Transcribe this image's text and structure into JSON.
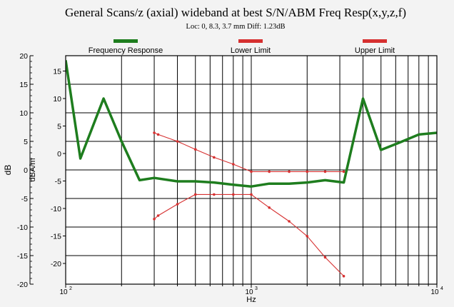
{
  "chart_data": {
    "type": "line",
    "title": "General Scans/z (axial) wideband at best S/N/ABM Freq Resp(x,y,z,f)",
    "subtitle": "Loc: 0, 8.3, 3.7 mm Diff: 1.23dB",
    "xlabel": "Hz",
    "ylabel_outer": "dB",
    "ylabel_inner": "dBA/m",
    "x_scale": "log",
    "xlim": [
      100,
      10000
    ],
    "x_ticks": [
      {
        "value": 100,
        "base": "10",
        "exp": "2"
      },
      {
        "value": 1000,
        "base": "10",
        "exp": "3"
      },
      {
        "value": 10000,
        "base": "10",
        "exp": "4"
      }
    ],
    "y_outer_ticks": [
      "20",
      "15",
      "10",
      "5",
      "0",
      "-5",
      "-10",
      "-15",
      "-20"
    ],
    "y_inner_ticks": [
      "15",
      "10",
      "5",
      "0",
      "-5",
      "-10",
      "-15",
      "-20"
    ],
    "grid": true,
    "legend_position": "top",
    "series": [
      {
        "name": "Frequency Response",
        "color": "#1e7d1e",
        "style": "thick",
        "points": [
          [
            100,
            19.2
          ],
          [
            120,
            2.0
          ],
          [
            160,
            12.5
          ],
          [
            200,
            5.0
          ],
          [
            250,
            -1.8
          ],
          [
            300,
            -1.4
          ],
          [
            400,
            -2.0
          ],
          [
            500,
            -2.0
          ],
          [
            630,
            -2.2
          ],
          [
            800,
            -2.6
          ],
          [
            1000,
            -2.9
          ],
          [
            1250,
            -2.4
          ],
          [
            1600,
            -2.4
          ],
          [
            2000,
            -2.2
          ],
          [
            2500,
            -1.8
          ],
          [
            3150,
            -2.2
          ],
          [
            4000,
            12.5
          ],
          [
            5000,
            3.5
          ],
          [
            6300,
            4.8
          ],
          [
            8000,
            6.2
          ],
          [
            10000,
            6.5
          ]
        ]
      },
      {
        "name": "Lower Limit",
        "color": "#d63030",
        "style": "thin-markers",
        "points": [
          [
            300,
            -8.6
          ],
          [
            315,
            -8.0
          ],
          [
            400,
            -6.0
          ],
          [
            500,
            -4.3
          ],
          [
            630,
            -4.3
          ],
          [
            800,
            -4.3
          ],
          [
            1000,
            -4.3
          ],
          [
            1250,
            -6.6
          ],
          [
            1600,
            -9.0
          ],
          [
            2000,
            -11.6
          ],
          [
            2500,
            -15.3
          ],
          [
            3150,
            -18.6
          ]
        ]
      },
      {
        "name": "Upper Limit",
        "color": "#d63030",
        "style": "thin-markers",
        "points": [
          [
            300,
            6.5
          ],
          [
            315,
            6.2
          ],
          [
            400,
            5.0
          ],
          [
            500,
            3.6
          ],
          [
            630,
            2.2
          ],
          [
            800,
            1.0
          ],
          [
            1000,
            -0.3
          ],
          [
            1250,
            -0.3
          ],
          [
            1600,
            -0.3
          ],
          [
            2000,
            -0.3
          ],
          [
            2500,
            -0.3
          ],
          [
            3150,
            -0.3
          ]
        ]
      }
    ]
  }
}
